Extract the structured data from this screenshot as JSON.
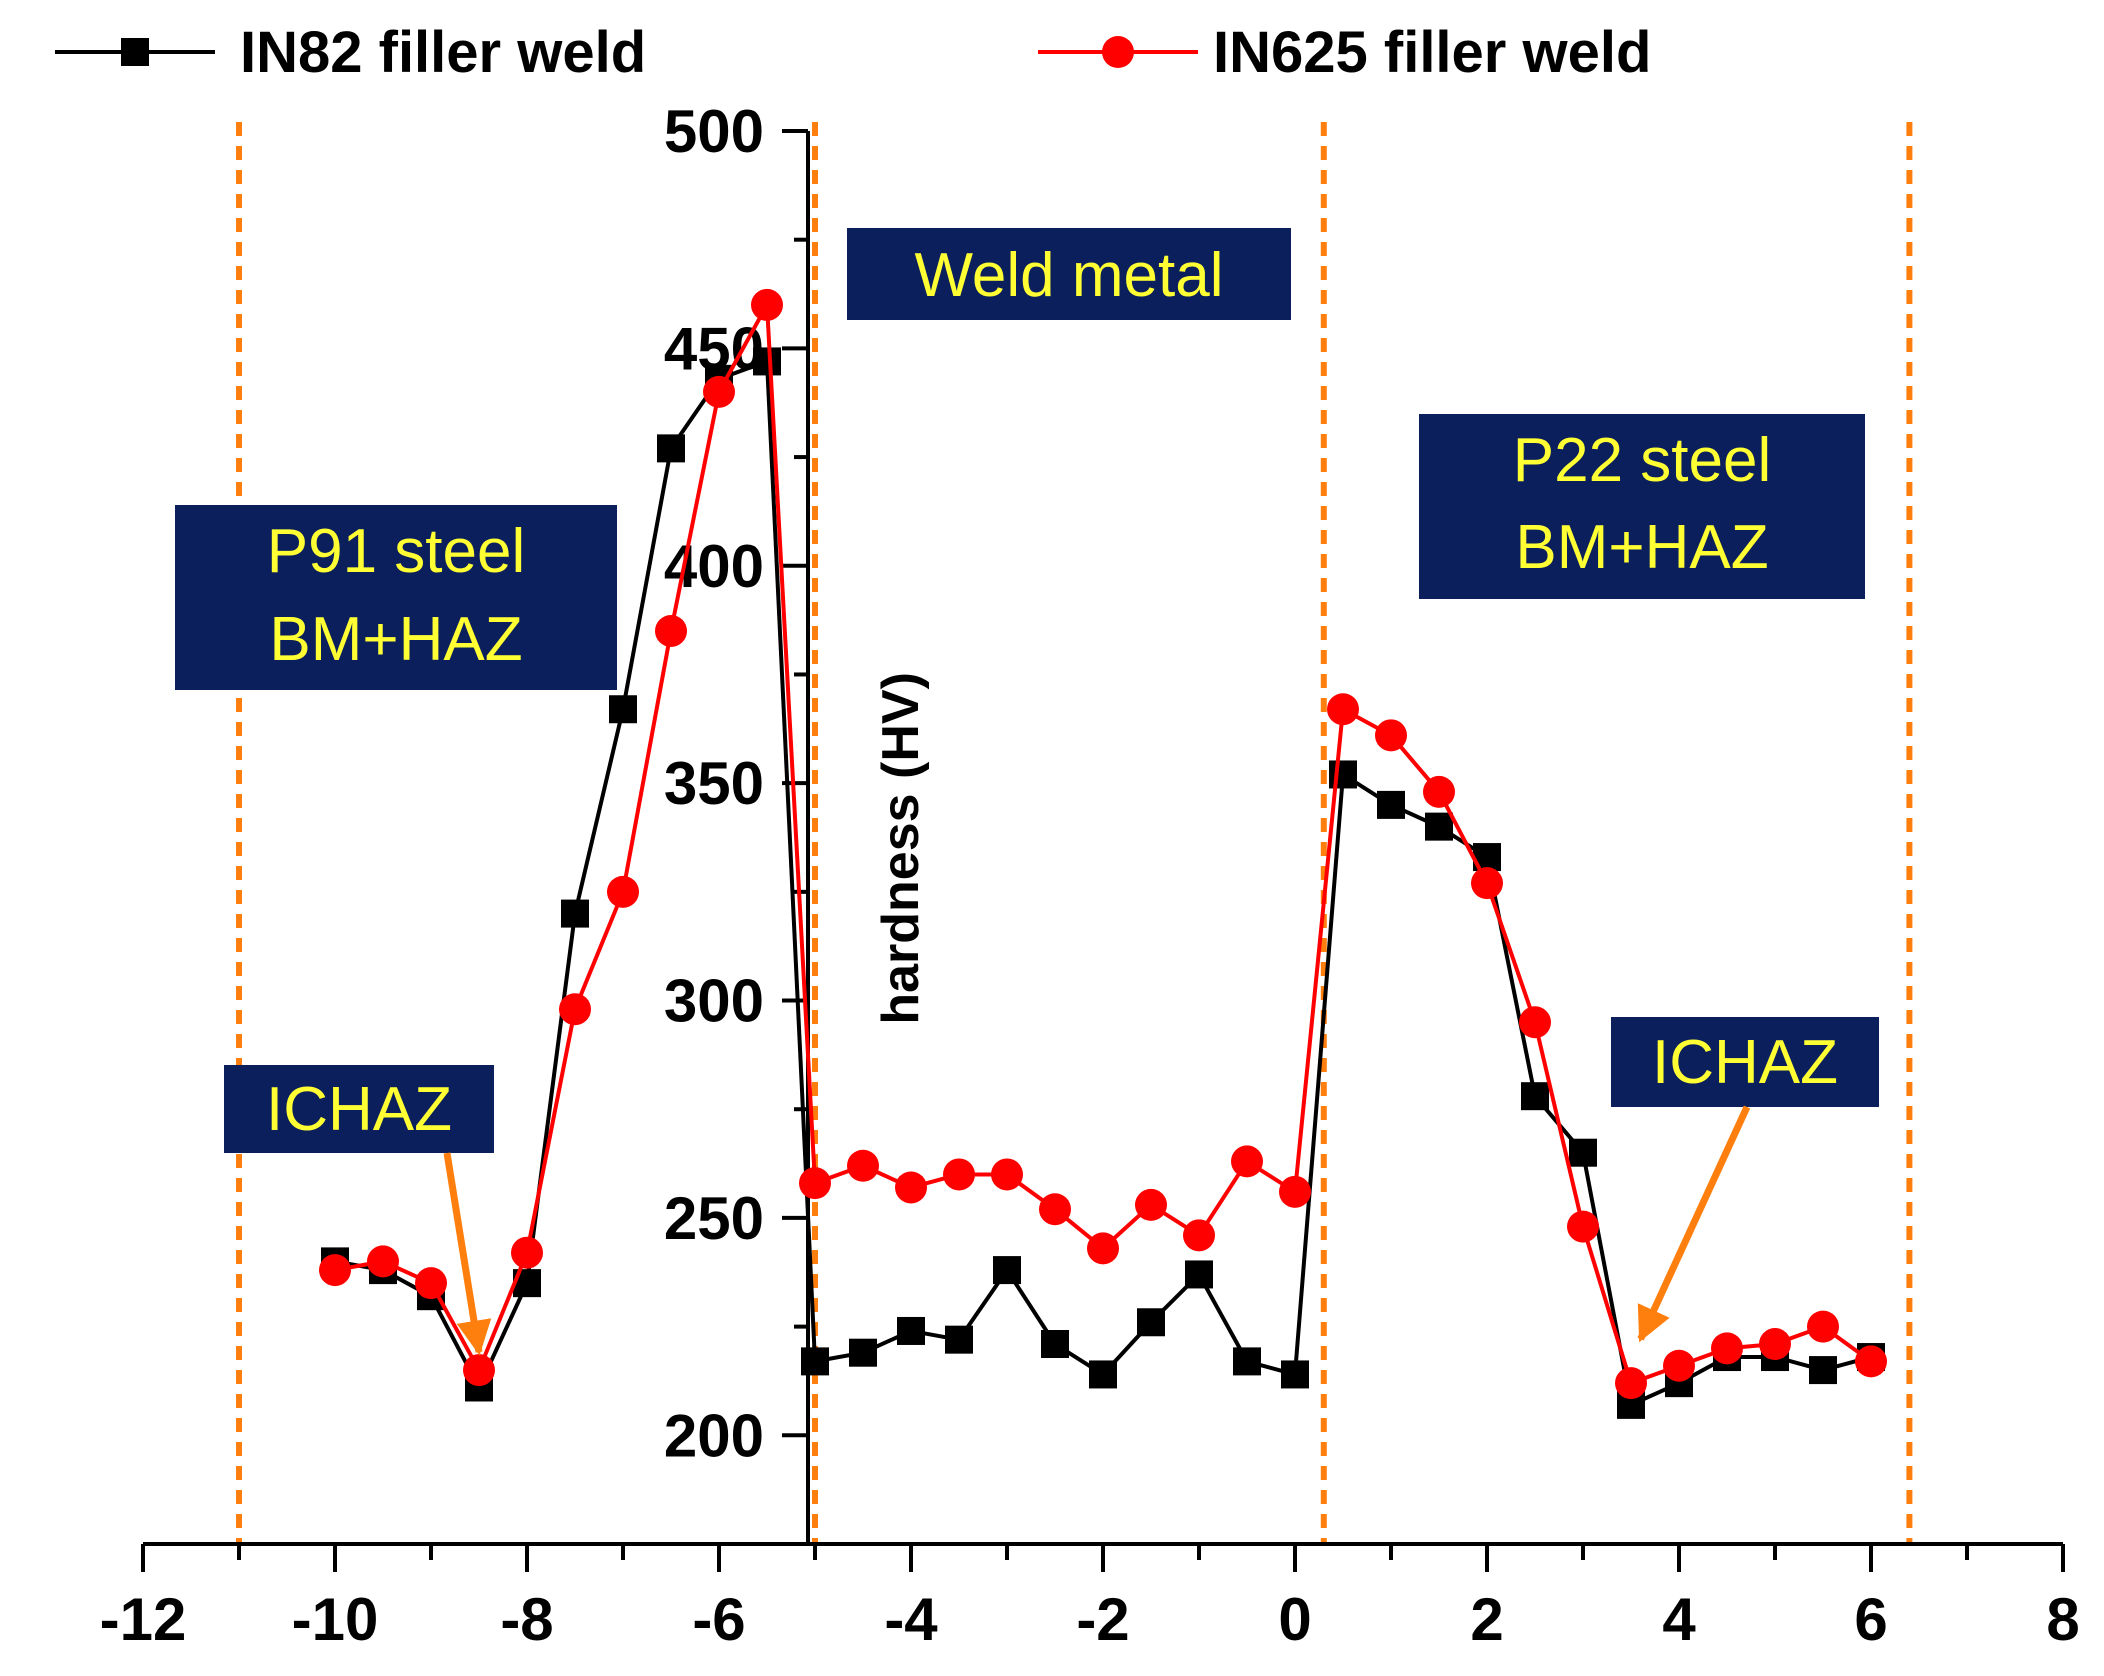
{
  "chart_data": {
    "type": "line",
    "title": "",
    "xlabel": "",
    "ylabel": "hardness (HV)",
    "xlim": [
      -12,
      8
    ],
    "ylim": [
      175,
      500
    ],
    "x_ticks": [
      -12,
      -10,
      -8,
      -6,
      -4,
      -2,
      0,
      2,
      4,
      6,
      8
    ],
    "y_ticks": [
      200,
      250,
      300,
      350,
      400,
      450,
      500
    ],
    "grid": false,
    "legend_position": "top",
    "series": [
      {
        "name": "IN82 filler weld",
        "color": "#000000",
        "marker": "square",
        "x": [
          -10,
          -9.5,
          -9,
          -8.5,
          -8,
          -7.5,
          -7,
          -6.5,
          -6,
          -5.5,
          -5,
          -4.5,
          -4,
          -3.5,
          -3,
          -2.5,
          -2,
          -1.5,
          -1,
          -0.5,
          0,
          0.5,
          1,
          1.5,
          2,
          2.5,
          3,
          3.5,
          4,
          4.5,
          5,
          5.5,
          6
        ],
        "y": [
          240,
          238,
          232,
          211,
          235,
          320,
          367,
          427,
          443,
          447,
          217,
          219,
          224,
          222,
          238,
          221,
          214,
          226,
          237,
          217,
          214,
          352,
          345,
          340,
          333,
          278,
          265,
          207,
          212,
          218,
          218,
          215,
          218
        ]
      },
      {
        "name": "IN625 filler weld",
        "color": "#ff0000",
        "marker": "circle",
        "x": [
          -10,
          -9.5,
          -9,
          -8.5,
          -8,
          -7.5,
          -7,
          -6.5,
          -6,
          -5.5,
          -5,
          -4.5,
          -4,
          -3.5,
          -3,
          -2.5,
          -2,
          -1.5,
          -1,
          -0.5,
          0,
          0.5,
          1,
          1.5,
          2,
          2.5,
          3,
          3.5,
          4,
          4.5,
          5,
          5.5,
          6
        ],
        "y": [
          238,
          240,
          235,
          215,
          242,
          298,
          325,
          385,
          440,
          460,
          258,
          262,
          257,
          260,
          260,
          252,
          243,
          253,
          246,
          263,
          256,
          367,
          361,
          348,
          327,
          295,
          248,
          212,
          216,
          220,
          221,
          225,
          217
        ]
      }
    ],
    "region_boundaries_x": [
      -11,
      -5,
      0.3,
      6.4
    ],
    "boundary_color": "#ff7f0e",
    "annotations": [
      {
        "text_lines": [
          "P91 steel",
          "BM+HAZ"
        ]
      },
      {
        "text_lines": [
          "Weld metal"
        ]
      },
      {
        "text_lines": [
          "P22 steel",
          "BM+HAZ"
        ]
      },
      {
        "text_lines": [
          "ICHAZ"
        ],
        "arrow_to": [
          -8.5,
          215
        ]
      },
      {
        "text_lines": [
          "ICHAZ"
        ],
        "arrow_to": [
          3.6,
          218
        ]
      }
    ],
    "annotation_box_color": "#0a1f5c",
    "annotation_text_color": "#ffff33",
    "arrow_color": "#ff7f0e"
  }
}
